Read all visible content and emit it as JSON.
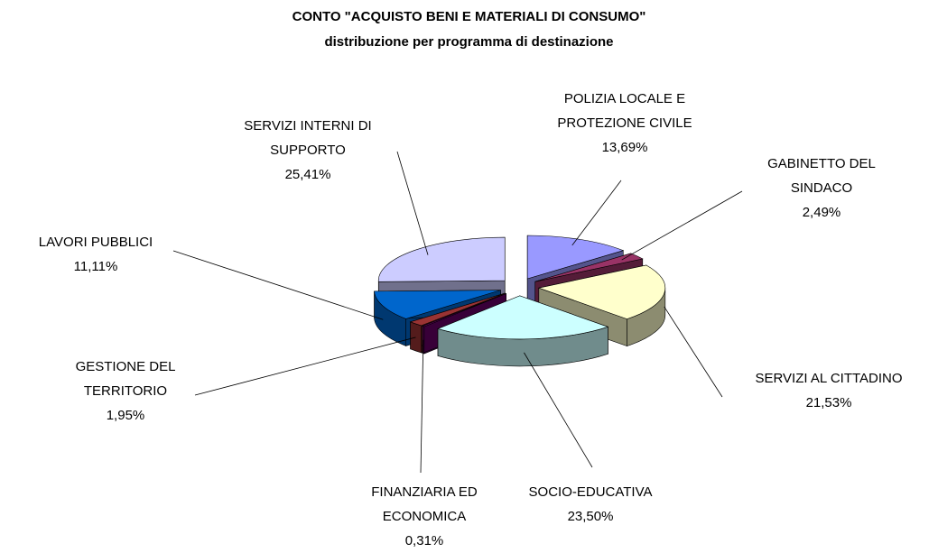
{
  "chart_data": {
    "type": "pie3d",
    "title": "CONTO \"ACQUISTO BENI E MATERIALI DI CONSUMO\"",
    "subtitle": "distribuzione per programma di destinazione",
    "categories": [
      "POLIZIA LOCALE E PROTEZIONE CIVILE",
      "GABINETTO DEL SINDACO",
      "SERVIZI AL CITTADINO",
      "SOCIO-EDUCATIVA",
      "FINANZIARIA ED ECONOMICA",
      "GESTIONE DEL TERRITORIO",
      "LAVORI PUBBLICI",
      "SERVIZI INTERNI DI SUPPORTO"
    ],
    "values": [
      13.69,
      2.49,
      21.53,
      23.5,
      0.31,
      1.95,
      11.11,
      25.41
    ],
    "value_labels": [
      "13,69%",
      "2,49%",
      "21,53%",
      "23,50%",
      "0,31%",
      "1,95%",
      "11,11%",
      "25,41%"
    ],
    "colors": [
      "#9999ff",
      "#993366",
      "#ffffcc",
      "#ccffff",
      "#660066",
      "#993333",
      "#0066cc",
      "#ccccff"
    ]
  }
}
